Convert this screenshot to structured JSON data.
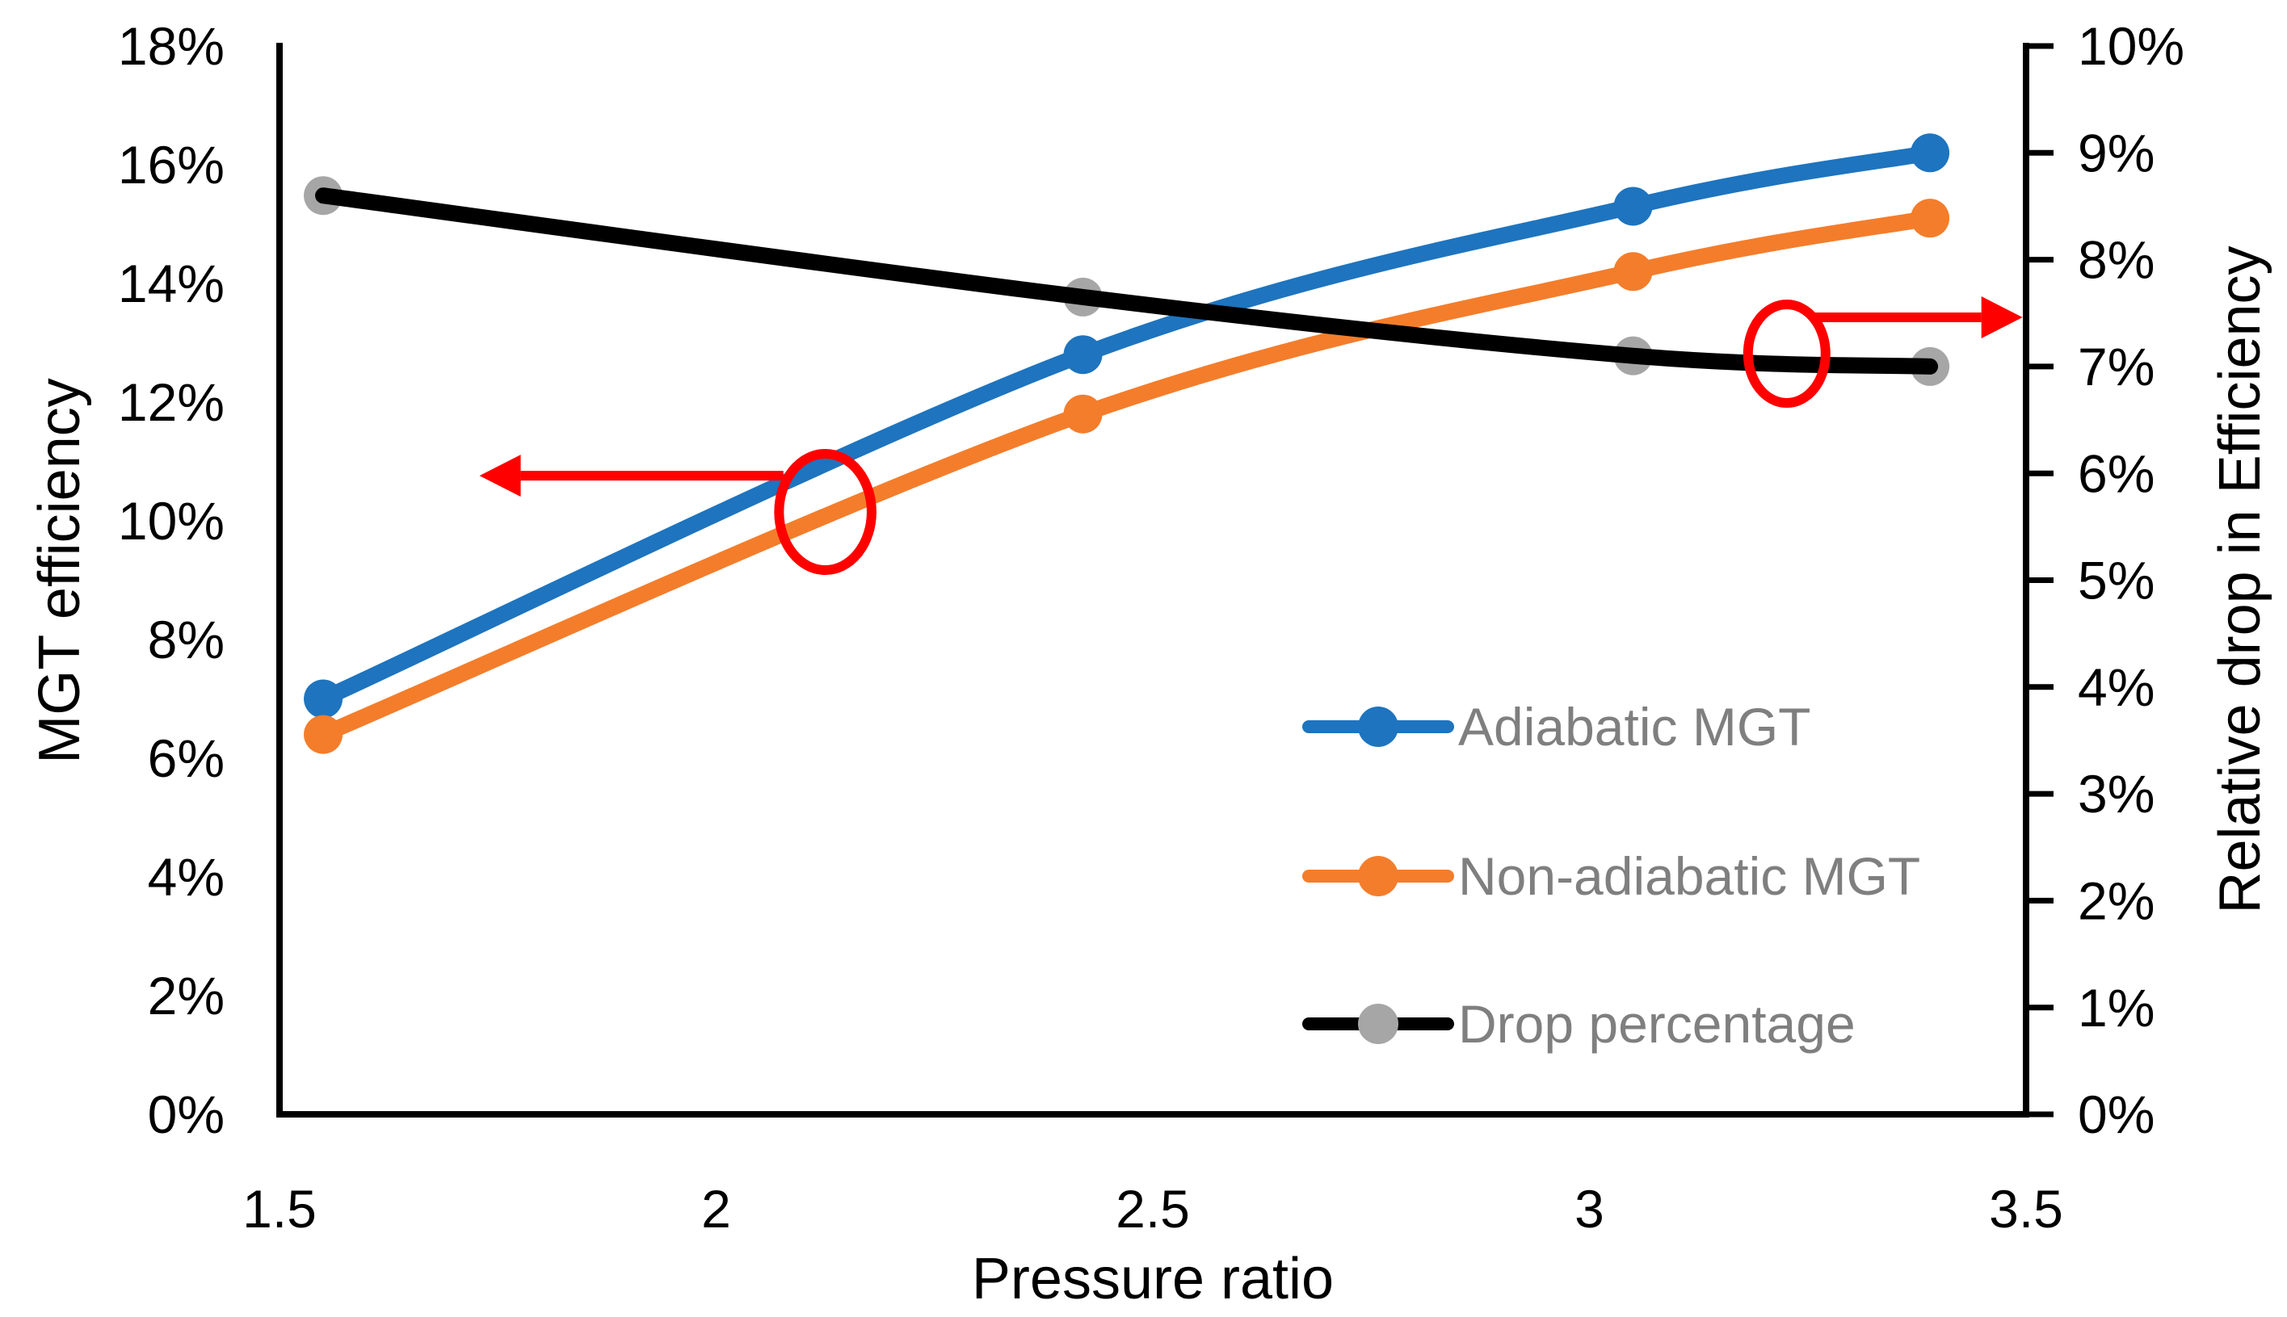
{
  "chart_data": {
    "type": "line",
    "title": "",
    "xlabel": "Pressure ratio",
    "xlim": [
      1.5,
      3.5
    ],
    "x_ticks": [
      {
        "value": 1.5,
        "label": "1.5"
      },
      {
        "value": 2,
        "label": "2"
      },
      {
        "value": 2.5,
        "label": "2.5"
      },
      {
        "value": 3,
        "label": "3"
      },
      {
        "value": 3.5,
        "label": "3.5"
      }
    ],
    "left_axis": {
      "label": "MGT efficiency",
      "lim": [
        0,
        18
      ],
      "tick_step": 2,
      "tick_labels": [
        "0%",
        "2%",
        "4%",
        "6%",
        "8%",
        "10%",
        "12%",
        "14%",
        "16%",
        "18%"
      ]
    },
    "right_axis": {
      "label": "Relative drop in Efficiency",
      "lim": [
        0,
        10
      ],
      "tick_step": 1,
      "tick_labels": [
        "0%",
        "1%",
        "2%",
        "3%",
        "4%",
        "5%",
        "6%",
        "7%",
        "8%",
        "9%",
        "10%"
      ]
    },
    "x": [
      1.55,
      2.42,
      3.05,
      3.39
    ],
    "series": [
      {
        "name": "Adiabatic MGT",
        "axis": "left",
        "line_color": "#1E74BE",
        "marker_color": "#1E74BE",
        "values": [
          7.0,
          12.8,
          15.3,
          16.2
        ]
      },
      {
        "name": "Non-adiabatic MGT",
        "axis": "left",
        "line_color": "#F47D2B",
        "marker_color": "#F47D2B",
        "values": [
          6.4,
          11.8,
          14.2,
          15.1
        ]
      },
      {
        "name": "Drop percentage",
        "axis": "right",
        "line_color": "#000000",
        "marker_color": "#A6A6A6",
        "values": [
          8.6,
          7.65,
          7.1,
          7.0
        ]
      }
    ],
    "legend": {
      "position": "inside-right-lower",
      "text_color": "#7F7F7F",
      "items": [
        "Adiabatic MGT",
        "Non-adiabatic MGT",
        "Drop percentage"
      ]
    },
    "annotations": [
      {
        "kind": "ellipse-with-arrow",
        "meaning": "left curves read on left axis",
        "color": "#FF0000",
        "axis": "left",
        "ellipse": {
          "cx_pr": 2.125,
          "cy_pct": 10.15,
          "rx_pr": 0.053,
          "ry_pct": 0.98
        },
        "arrow": {
          "y_pct": 10.76,
          "start_pr": 2.077,
          "tip_pr": 1.729,
          "direction": "left"
        }
      },
      {
        "kind": "ellipse-with-arrow",
        "meaning": "drop curve read on right axis",
        "color": "#FF0000",
        "axis": "right",
        "ellipse": {
          "cx_pr": 3.226,
          "cy_pct": 7.12,
          "rx_pr": 0.0444,
          "ry_pct": 0.461
        },
        "arrow": {
          "y_pct": 7.46,
          "start_pr": 3.258,
          "tip_pr": 3.496,
          "direction": "right"
        }
      }
    ],
    "grid": false,
    "background_color": "#FFFFFF",
    "axis_color": "#000000"
  }
}
